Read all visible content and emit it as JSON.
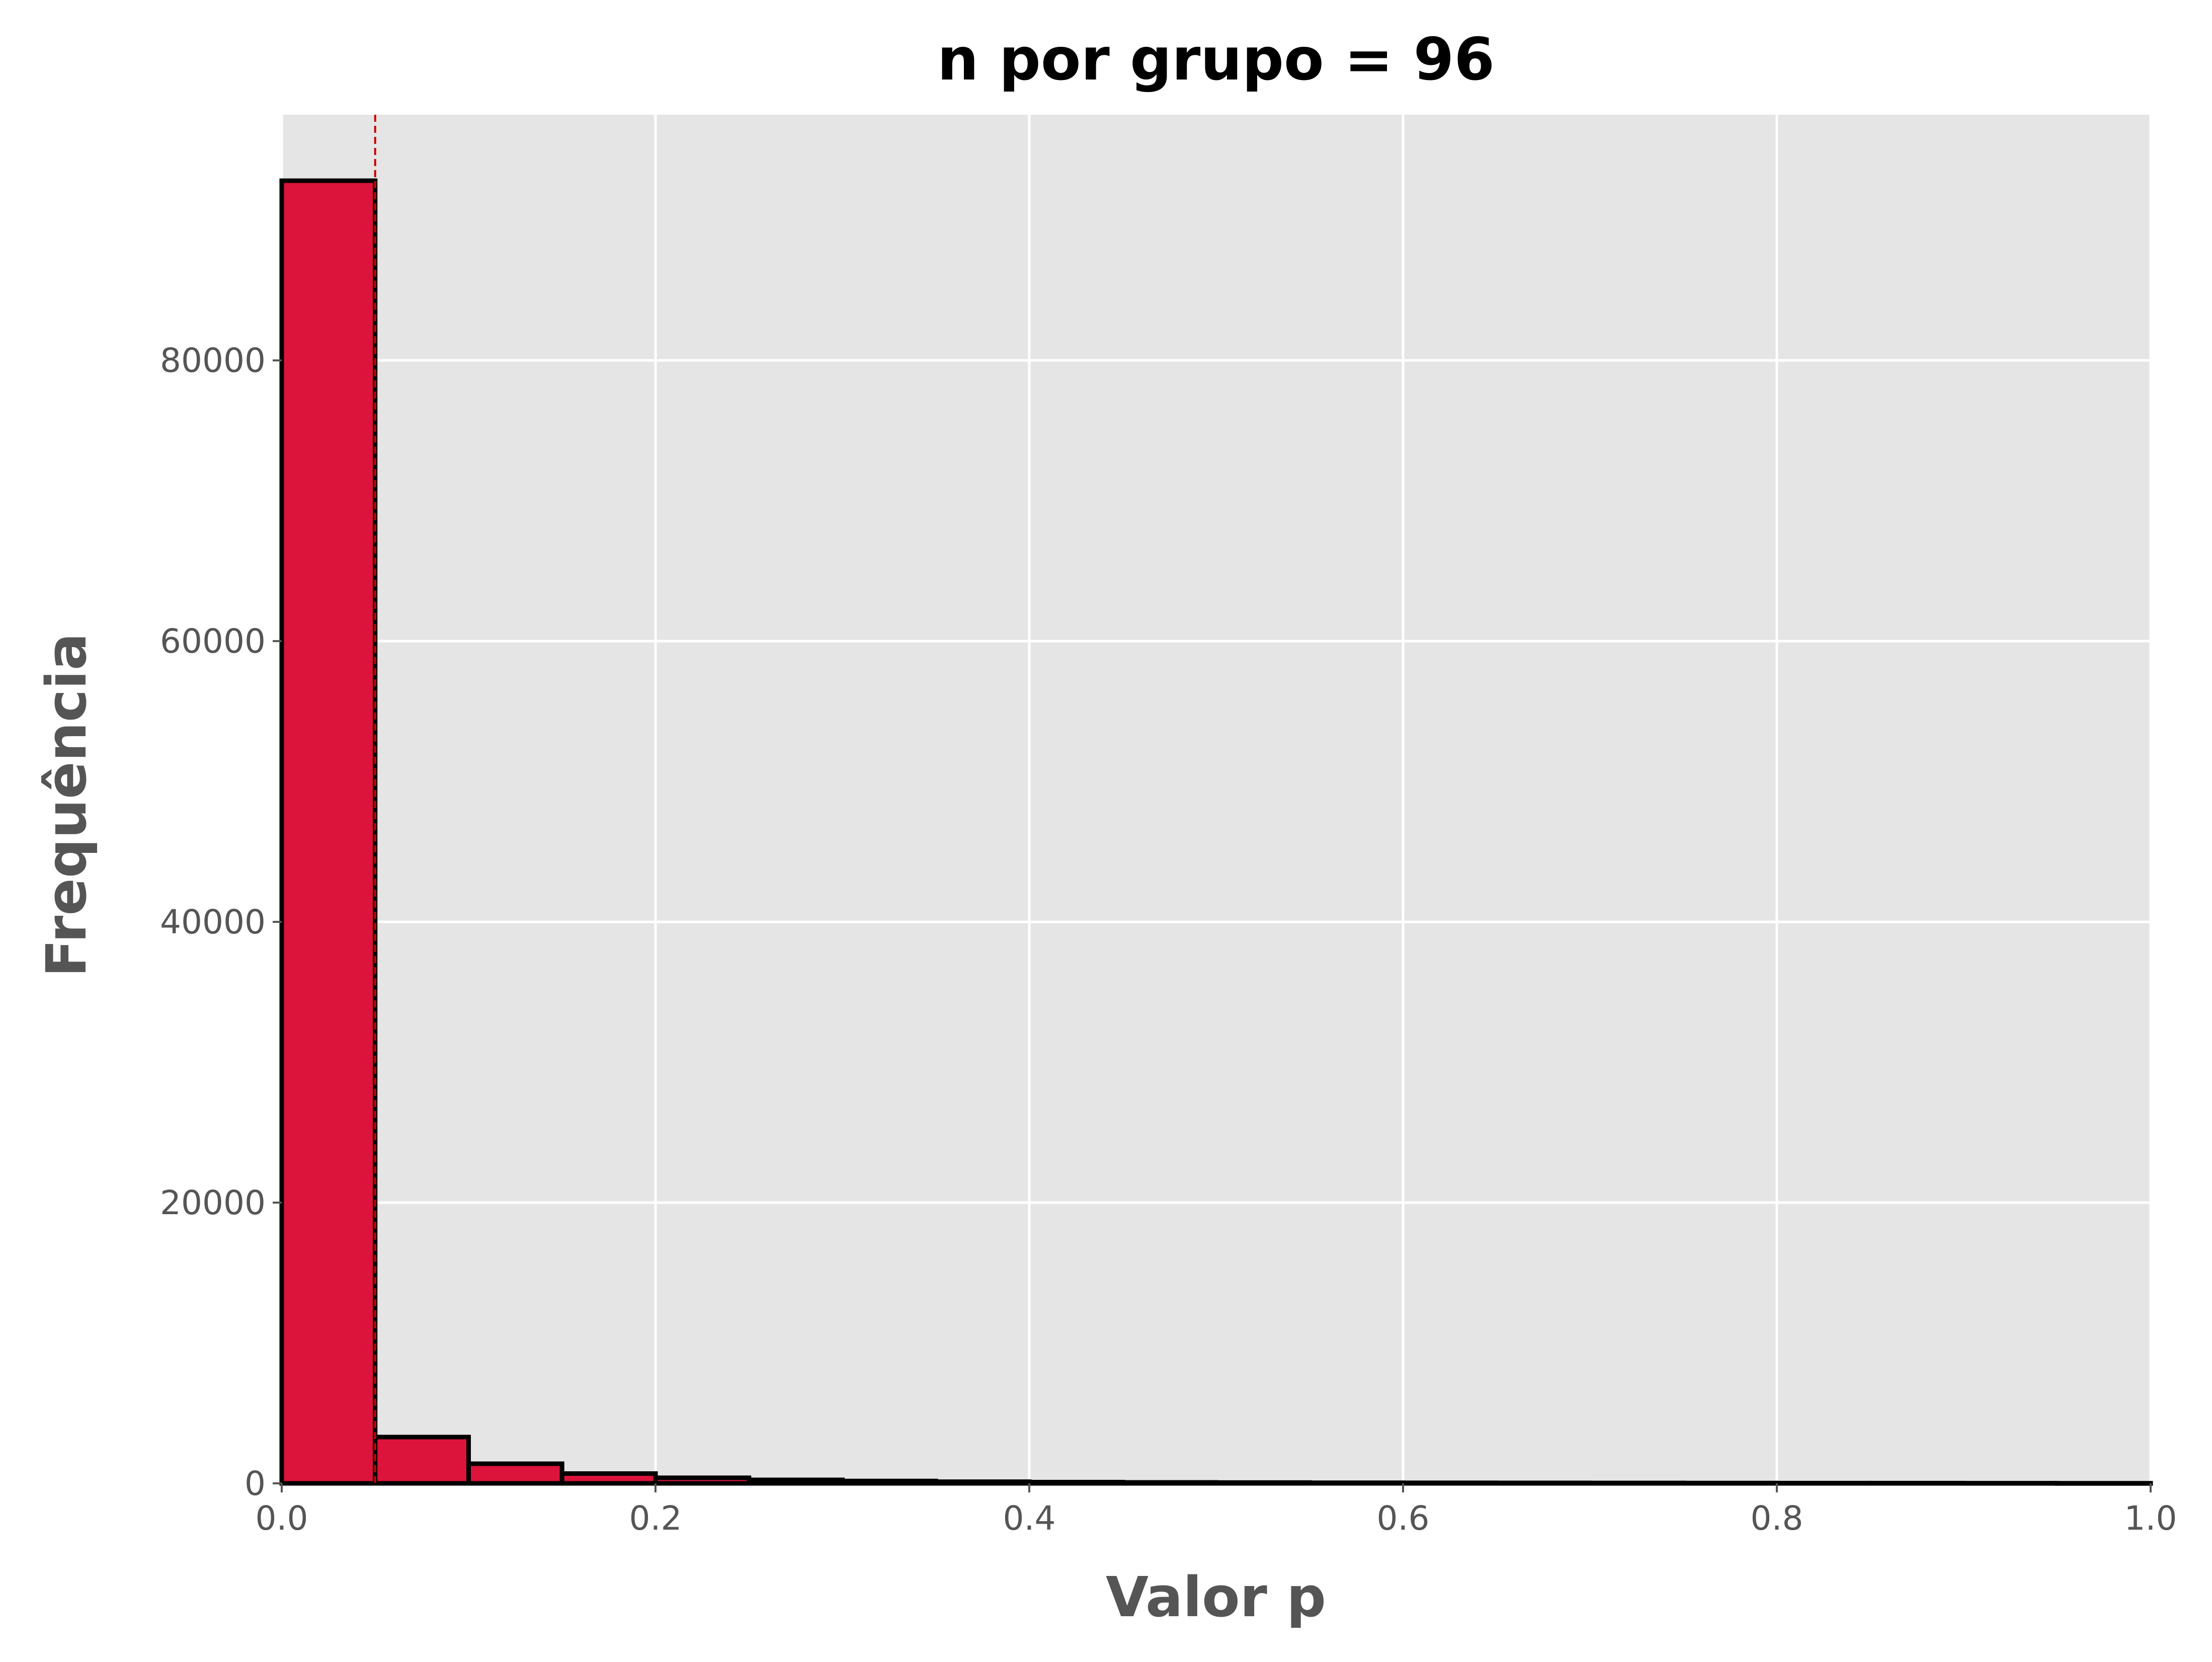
{
  "chart_data": {
    "type": "bar",
    "subtype": "histogram",
    "title": "n por grupo = 96",
    "xlabel": "Valor p",
    "ylabel": "Frequência",
    "xlim": [
      0.0,
      1.0
    ],
    "ylim": [
      0,
      97500
    ],
    "x_ticks": [
      "0.0",
      "0.2",
      "0.4",
      "0.6",
      "0.8",
      "1.0"
    ],
    "y_ticks": [
      "0",
      "20000",
      "40000",
      "60000",
      "80000"
    ],
    "bin_width": 0.05,
    "bin_edges": [
      0.0,
      0.05,
      0.1,
      0.15,
      0.2,
      0.25,
      0.3,
      0.35,
      0.4,
      0.45,
      0.5,
      0.55,
      0.6,
      0.65,
      0.7,
      0.75,
      0.8,
      0.85,
      0.9,
      0.95,
      1.0
    ],
    "values": [
      92800,
      3300,
      1400,
      700,
      400,
      250,
      170,
      120,
      90,
      70,
      60,
      45,
      40,
      35,
      30,
      25,
      20,
      20,
      15,
      10
    ],
    "threshold_line": {
      "x": 0.05,
      "style": "dashed",
      "color": "#cc0000"
    },
    "grid": true,
    "colors": {
      "bar_fill": "#dc143c",
      "bar_edge": "#000000",
      "plot_background": "#e5e5e5",
      "grid": "#ffffff"
    }
  }
}
